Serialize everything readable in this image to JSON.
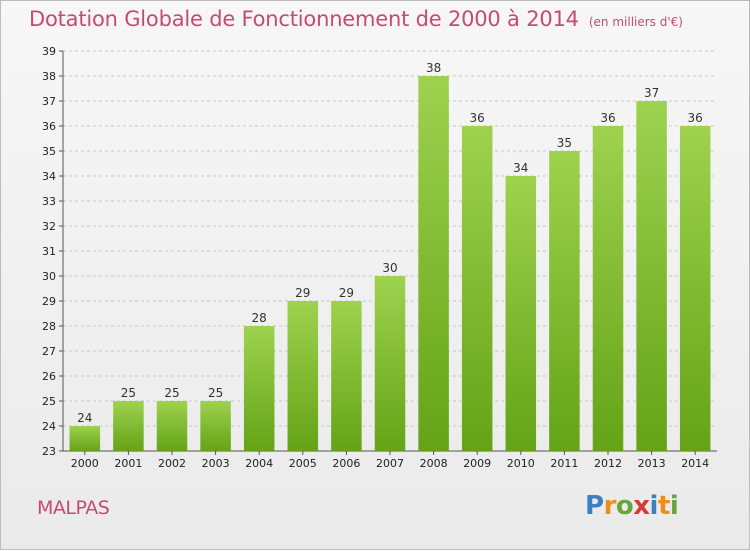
{
  "header": {
    "title": "Dotation Globale de Fonctionnement de 2000 à 2014",
    "subtitle": "(en milliers d'€)"
  },
  "footer": {
    "commune": "MALPAS",
    "logo_letters": [
      {
        "ch": "P",
        "color": "#3d7fc1"
      },
      {
        "ch": "r",
        "color": "#e8901b"
      },
      {
        "ch": "o",
        "color": "#6aa53b"
      },
      {
        "ch": "x",
        "color": "#d83a3a"
      },
      {
        "ch": "i",
        "color": "#3d7fc1"
      },
      {
        "ch": "t",
        "color": "#e8901b"
      },
      {
        "ch": "i",
        "color": "#6aa53b"
      }
    ]
  },
  "chart_data": {
    "type": "bar",
    "categories": [
      "2000",
      "2001",
      "2002",
      "2003",
      "2004",
      "2005",
      "2006",
      "2007",
      "2008",
      "2009",
      "2010",
      "2011",
      "2012",
      "2013",
      "2014"
    ],
    "values": [
      24,
      25,
      25,
      25,
      28,
      29,
      29,
      30,
      38,
      36,
      34,
      35,
      36,
      37,
      36
    ],
    "ylim": [
      23,
      39
    ],
    "yticks": [
      23,
      24,
      25,
      26,
      27,
      28,
      29,
      30,
      31,
      32,
      33,
      34,
      35,
      36,
      37,
      38,
      39
    ],
    "grid": true,
    "bar_color": "#8cc63e"
  }
}
